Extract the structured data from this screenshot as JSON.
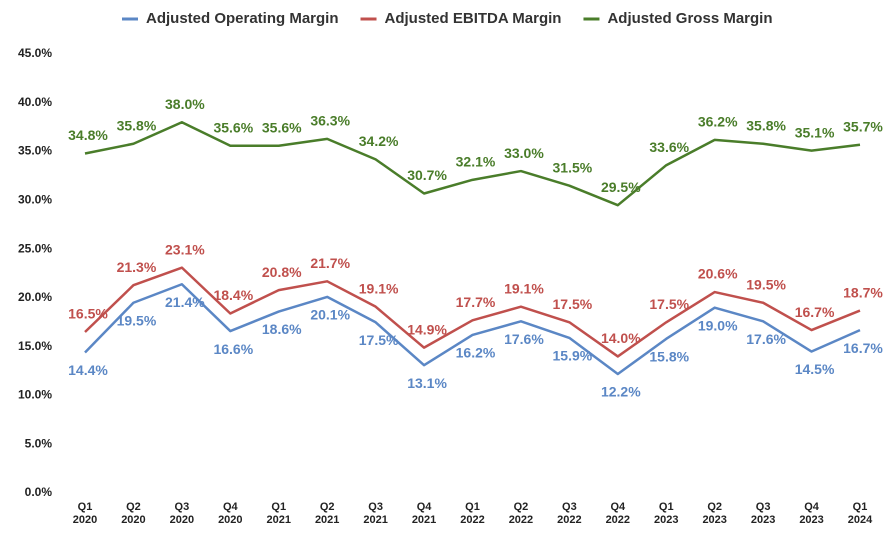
{
  "chart_data": {
    "type": "line",
    "categories": [
      [
        "Q1",
        "2020"
      ],
      [
        "Q2",
        "2020"
      ],
      [
        "Q3",
        "2020"
      ],
      [
        "Q4",
        "2020"
      ],
      [
        "Q1",
        "2021"
      ],
      [
        "Q2",
        "2021"
      ],
      [
        "Q3",
        "2021"
      ],
      [
        "Q4",
        "2021"
      ],
      [
        "Q1",
        "2022"
      ],
      [
        "Q2",
        "2022"
      ],
      [
        "Q3",
        "2022"
      ],
      [
        "Q4",
        "2022"
      ],
      [
        "Q1",
        "2023"
      ],
      [
        "Q2",
        "2023"
      ],
      [
        "Q3",
        "2023"
      ],
      [
        "Q4",
        "2023"
      ],
      [
        "Q1",
        "2024"
      ]
    ],
    "series": [
      {
        "name": "Adjusted Operating Margin",
        "color": "#5b87c5",
        "label_position": "below",
        "values": [
          14.4,
          19.5,
          21.4,
          16.6,
          18.6,
          20.1,
          17.5,
          13.1,
          16.2,
          17.6,
          15.9,
          12.2,
          15.8,
          19.0,
          17.6,
          14.5,
          16.7
        ],
        "value_labels": [
          "14.4%",
          "19.5%",
          "21.4%",
          "16.6%",
          "18.6%",
          "20.1%",
          "17.5%",
          "13.1%",
          "16.2%",
          "17.6%",
          "15.9%",
          "12.2%",
          "15.8%",
          "19.0%",
          "17.6%",
          "14.5%",
          "16.7%"
        ]
      },
      {
        "name": "Adjusted EBITDA Margin",
        "color": "#c0504d",
        "label_position": "above",
        "values": [
          16.5,
          21.3,
          23.1,
          18.4,
          20.8,
          21.7,
          19.1,
          14.9,
          17.7,
          19.1,
          17.5,
          14.0,
          17.5,
          20.6,
          19.5,
          16.7,
          18.7
        ],
        "value_labels": [
          "16.5%",
          "21.3%",
          "23.1%",
          "18.4%",
          "20.8%",
          "21.7%",
          "19.1%",
          "14.9%",
          "17.7%",
          "19.1%",
          "17.5%",
          "14.0%",
          "17.5%",
          "20.6%",
          "19.5%",
          "16.7%",
          "18.7%"
        ]
      },
      {
        "name": "Adjusted Gross Margin",
        "color": "#4a7d2a",
        "label_position": "above",
        "values": [
          34.8,
          35.8,
          38.0,
          35.6,
          35.6,
          36.3,
          34.2,
          30.7,
          32.1,
          33.0,
          31.5,
          29.5,
          33.6,
          36.2,
          35.8,
          35.1,
          35.7
        ],
        "value_labels": [
          "34.8%",
          "35.8%",
          "38.0%",
          "35.6%",
          "35.6%",
          "36.3%",
          "34.2%",
          "30.7%",
          "32.1%",
          "33.0%",
          "31.5%",
          "29.5%",
          "33.6%",
          "36.2%",
          "35.8%",
          "35.1%",
          "35.7%"
        ]
      }
    ],
    "ylim": [
      0,
      45
    ],
    "yticks": [
      {
        "value": 0,
        "label": "0.0%"
      },
      {
        "value": 5,
        "label": "5.0%"
      },
      {
        "value": 10,
        "label": "10.0%"
      },
      {
        "value": 15,
        "label": "15.0%"
      },
      {
        "value": 20,
        "label": "20.0%"
      },
      {
        "value": 25,
        "label": "25.0%"
      },
      {
        "value": 30,
        "label": "30.0%"
      },
      {
        "value": 35,
        "label": "35.0%"
      },
      {
        "value": 40,
        "label": "40.0%"
      },
      {
        "value": 45,
        "label": "45.0%"
      }
    ],
    "grid": false,
    "legend": "top"
  }
}
